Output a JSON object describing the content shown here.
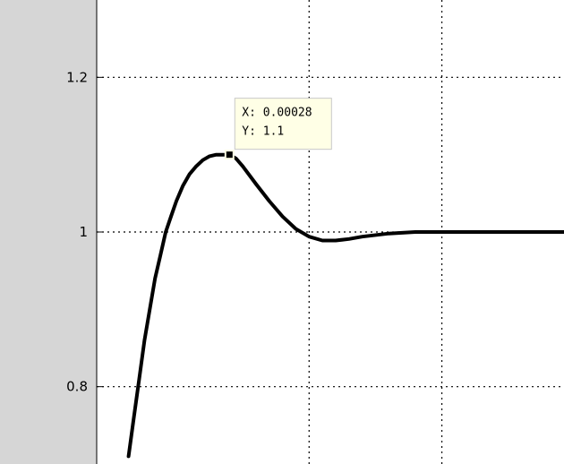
{
  "chart_data": {
    "type": "line",
    "title": "",
    "xlabel": "",
    "ylabel": "",
    "grid": true,
    "ylim": [
      0.7,
      1.3
    ],
    "xlim": [
      0.00018,
      0.000532
    ],
    "yticks": [
      {
        "value": 0.8,
        "label": "0.8"
      },
      {
        "value": 1.0,
        "label": "1"
      },
      {
        "value": 1.2,
        "label": "1.2"
      }
    ],
    "xgrid": [
      0.00034,
      0.00044
    ],
    "series": [
      {
        "color": "#000000",
        "x": [
          0.000204,
          0.000208,
          0.000212,
          0.000216,
          0.00022,
          0.000224,
          0.000228,
          0.000232,
          0.000236,
          0.00024,
          0.000245,
          0.00025,
          0.000255,
          0.00026,
          0.000265,
          0.00027,
          0.000275,
          0.00028,
          0.000285,
          0.00029,
          0.0003,
          0.00031,
          0.00032,
          0.00033,
          0.00034,
          0.00035,
          0.00036,
          0.00037,
          0.00038,
          0.0004,
          0.00042,
          0.00045,
          0.00048,
          0.00051,
          0.000532
        ],
        "y": [
          0.71,
          0.76,
          0.81,
          0.86,
          0.9,
          0.94,
          0.97,
          1.0,
          1.02,
          1.04,
          1.06,
          1.075,
          1.085,
          1.093,
          1.098,
          1.1,
          1.1,
          1.1,
          1.095,
          1.085,
          1.062,
          1.04,
          1.02,
          1.004,
          0.994,
          0.989,
          0.989,
          0.991,
          0.994,
          0.998,
          1.0,
          1.0,
          1.0,
          1.0,
          1.0
        ]
      }
    ],
    "datatip": {
      "x": 0.00028,
      "y": 1.1,
      "x_label": "X: 0.00028",
      "y_label": "Y: 1.1"
    }
  }
}
